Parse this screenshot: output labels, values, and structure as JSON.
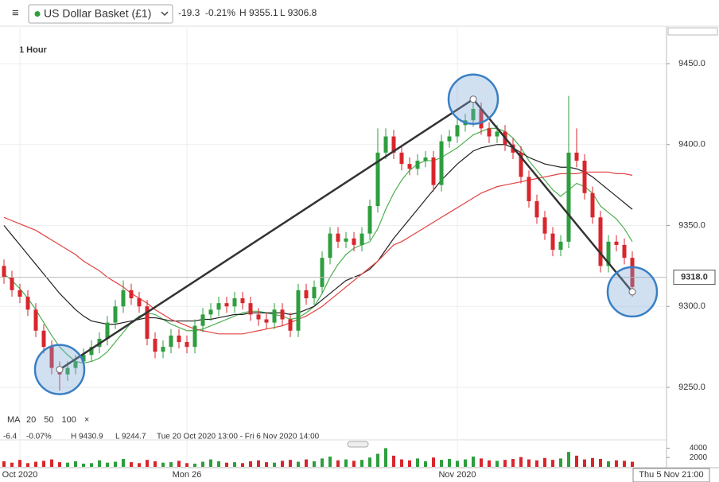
{
  "header": {
    "menu_icon": "≡",
    "instrument": "US Dollar Basket (£1)",
    "change": "-19.3",
    "change_pct": "-0.21%",
    "high": "H 9355.1",
    "low": "L 9306.8"
  },
  "chart_data": {
    "type": "candlestick",
    "interval": "1 Hour",
    "categories": [
      null,
      null,
      "Oct 2020",
      null,
      null,
      null,
      null,
      null,
      null,
      null,
      null,
      null,
      null,
      null,
      null,
      null,
      null,
      null,
      null,
      null,
      null,
      null,
      null,
      "Mon 26",
      null,
      null,
      null,
      null,
      null,
      null,
      null,
      null,
      null,
      null,
      null,
      null,
      null,
      null,
      null,
      null,
      null,
      null,
      null,
      null,
      null,
      null,
      null,
      null,
      null,
      null,
      null,
      null,
      null,
      null,
      null,
      null,
      null,
      "Nov 2020",
      null,
      null,
      null,
      null,
      null,
      null,
      null,
      null,
      null,
      null,
      null,
      null,
      null,
      null,
      null,
      null,
      null,
      null,
      null,
      null,
      null,
      null
    ],
    "crosshair_time": "Thu 5 Nov 21:00",
    "up_color": "#2e9e3e",
    "down_color": "#d8262c",
    "open": [
      9325,
      9318,
      9310,
      9306,
      9298,
      9285,
      9275,
      9262,
      9258,
      9262,
      9266,
      9270,
      9275,
      9280,
      9290,
      9300,
      9310,
      9305,
      9300,
      9280,
      9272,
      9275,
      9282,
      9278,
      9275,
      9288,
      9295,
      9298,
      9302,
      9300,
      9305,
      9302,
      9295,
      9292,
      9290,
      9298,
      9292,
      9285,
      9310,
      9305,
      9312,
      9330,
      9345,
      9340,
      9342,
      9338,
      9345,
      9362,
      9395,
      9405,
      9395,
      9388,
      9385,
      9390,
      9392,
      9375,
      9402,
      9405,
      9412,
      9415,
      9422,
      9410,
      9405,
      9408,
      9400,
      9395,
      9380,
      9365,
      9355,
      9345,
      9335,
      9340,
      9395,
      9390,
      9370,
      9355,
      9325,
      9340,
      9338,
      9330
    ],
    "high": [
      9329,
      9322,
      9314,
      9310,
      9302,
      9289,
      9279,
      9266,
      9266,
      9270,
      9274,
      9279,
      9284,
      9294,
      9304,
      9316,
      9314,
      9309,
      9304,
      9284,
      9279,
      9286,
      9286,
      9282,
      9292,
      9299,
      9302,
      9306,
      9306,
      9309,
      9309,
      9306,
      9299,
      9296,
      9302,
      9302,
      9296,
      9314,
      9314,
      9316,
      9334,
      9349,
      9349,
      9346,
      9346,
      9349,
      9366,
      9410,
      9410,
      9409,
      9399,
      9392,
      9394,
      9396,
      9396,
      9406,
      9409,
      9416,
      9419,
      9428,
      9426,
      9414,
      9412,
      9412,
      9404,
      9399,
      9384,
      9369,
      9359,
      9349,
      9344,
      9430,
      9410,
      9394,
      9374,
      9359,
      9344,
      9344,
      9342,
      9334
    ],
    "low": [
      9314,
      9306,
      9302,
      9294,
      9281,
      9271,
      9258,
      9248,
      9254,
      9258,
      9262,
      9266,
      9271,
      9276,
      9286,
      9296,
      9301,
      9296,
      9276,
      9268,
      9268,
      9271,
      9274,
      9271,
      9271,
      9284,
      9291,
      9294,
      9296,
      9296,
      9298,
      9291,
      9288,
      9286,
      9286,
      9288,
      9281,
      9281,
      9301,
      9301,
      9308,
      9326,
      9336,
      9336,
      9334,
      9334,
      9341,
      9358,
      9391,
      9391,
      9384,
      9381,
      9381,
      9386,
      9371,
      9371,
      9398,
      9401,
      9408,
      9411,
      9406,
      9401,
      9401,
      9396,
      9391,
      9376,
      9361,
      9351,
      9341,
      9331,
      9331,
      9336,
      9386,
      9366,
      9351,
      9321,
      9321,
      9334,
      9326,
      9306
    ],
    "close": [
      9318,
      9310,
      9306,
      9298,
      9285,
      9275,
      9262,
      9258,
      9262,
      9266,
      9270,
      9275,
      9280,
      9290,
      9300,
      9310,
      9305,
      9300,
      9280,
      9272,
      9275,
      9282,
      9278,
      9275,
      9288,
      9295,
      9298,
      9302,
      9300,
      9305,
      9302,
      9295,
      9292,
      9290,
      9298,
      9292,
      9285,
      9310,
      9305,
      9312,
      9330,
      9345,
      9340,
      9342,
      9338,
      9345,
      9362,
      9395,
      9405,
      9395,
      9388,
      9385,
      9390,
      9392,
      9375,
      9402,
      9405,
      9412,
      9415,
      9422,
      9410,
      9405,
      9408,
      9400,
      9395,
      9380,
      9365,
      9355,
      9345,
      9335,
      9340,
      9395,
      9390,
      9370,
      9355,
      9325,
      9340,
      9338,
      9330,
      9312
    ],
    "ma_label": "MA",
    "ma_close": "×",
    "ma_series": [
      {
        "name": "20",
        "color": "#4caf50",
        "values": [
          9320,
          9316,
          9311,
          9305,
          9298,
          9290,
          9282,
          9275,
          9270,
          9266,
          9265,
          9266,
          9268,
          9272,
          9278,
          9284,
          9290,
          9294,
          9296,
          9295,
          9292,
          9289,
          9287,
          9285,
          9285,
          9286,
          9288,
          9290,
          9292,
          9294,
          9296,
          9297,
          9297,
          9296,
          9295,
          9294,
          9292,
          9293,
          9296,
          9300,
          9308,
          9318,
          9326,
          9332,
          9336,
          9338,
          9340,
          9348,
          9360,
          9370,
          9378,
          9384,
          9388,
          9390,
          9390,
          9392,
          9395,
          9398,
          9402,
          9406,
          9408,
          9410,
          9410,
          9408,
          9404,
          9398,
          9390,
          9384,
          9378,
          9372,
          9368,
          9372,
          9376,
          9374,
          9370,
          9362,
          9358,
          9354,
          9348,
          9340
        ]
      },
      {
        "name": "50",
        "color": "#222222",
        "values": [
          9350,
          9344,
          9338,
          9332,
          9326,
          9320,
          9314,
          9308,
          9303,
          9298,
          9294,
          9291,
          9290,
          9289,
          9289,
          9290,
          9291,
          9292,
          9293,
          9293,
          9292,
          9291,
          9291,
          9291,
          9291,
          9292,
          9292,
          9293,
          9294,
          9295,
          9295,
          9296,
          9296,
          9296,
          9296,
          9296,
          9295,
          9296,
          9298,
          9300,
          9304,
          9308,
          9312,
          9316,
          9318,
          9320,
          9323,
          9328,
          9335,
          9342,
          9348,
          9354,
          9360,
          9366,
          9372,
          9378,
          9383,
          9388,
          9392,
          9396,
          9398,
          9399,
          9400,
          9400,
          9398,
          9395,
          9392,
          9390,
          9388,
          9387,
          9386,
          9386,
          9385,
          9383,
          9380,
          9376,
          9372,
          9368,
          9364,
          9360
        ]
      },
      {
        "name": "100",
        "color": "#e0433f",
        "values": [
          9355,
          9353,
          9351,
          9349,
          9347,
          9344,
          9341,
          9338,
          9335,
          9332,
          9328,
          9325,
          9322,
          9318,
          9315,
          9312,
          9308,
          9305,
          9302,
          9298,
          9295,
          9292,
          9290,
          9288,
          9286,
          9285,
          9284,
          9283,
          9283,
          9283,
          9283,
          9284,
          9285,
          9286,
          9287,
          9288,
          9290,
          9292,
          9294,
          9297,
          9300,
          9304,
          9308,
          9312,
          9316,
          9320,
          9324,
          9328,
          9333,
          9338,
          9340,
          9343,
          9346,
          9349,
          9352,
          9355,
          9358,
          9361,
          9364,
          9367,
          9370,
          9372,
          9374,
          9375,
          9376,
          9377,
          9378,
          9379,
          9380,
          9381,
          9382,
          9382,
          9382,
          9383,
          9383,
          9383,
          9383,
          9382,
          9382,
          9381
        ]
      }
    ],
    "trendline": [
      {
        "index": 7,
        "price": 9261
      },
      {
        "index": 59,
        "price": 9428
      },
      {
        "index": 79,
        "price": 9309
      }
    ],
    "ylim": [
      9226.4,
      9472.1
    ],
    "yticks": [
      {
        "value": 9250,
        "label": "9250.0"
      },
      {
        "value": 9300,
        "label": "9300.0"
      },
      {
        "value": 9350,
        "label": "9350.0"
      },
      {
        "value": 9400,
        "label": "9400.0"
      },
      {
        "value": 9450,
        "label": "9450.0"
      }
    ],
    "last_price": {
      "value": 9318,
      "label": "9318.0"
    },
    "info": {
      "change": "-6.4",
      "change_pct": "-0.07%",
      "high": "H 9430.9",
      "low": "L 9244.7",
      "range": "Tue 20 Oct 2020 13:00 - Fri 6 Nov 2020 14:00"
    },
    "volume": {
      "values": [
        1200,
        900,
        1500,
        800,
        1100,
        1300,
        1600,
        1000,
        900,
        1200,
        700,
        800,
        1400,
        900,
        1100,
        1700,
        1000,
        800,
        1500,
        1200,
        900,
        1000,
        1300,
        800,
        700,
        1100,
        1600,
        1200,
        900,
        1000,
        800,
        1200,
        1400,
        1000,
        900,
        1300,
        1500,
        1100,
        1600,
        1200,
        1800,
        2200,
        1400,
        1600,
        1300,
        1500,
        2000,
        2800,
        4000,
        2400,
        1600,
        1400,
        1800,
        1200,
        2000,
        1500,
        1700,
        1300,
        1600,
        2200,
        1800,
        1400,
        1300,
        1500,
        1700,
        2100,
        1600,
        1400,
        1900,
        1500,
        1800,
        3200,
        2400,
        1600,
        1900,
        1700,
        1200,
        1400,
        1300,
        1100
      ],
      "ylim": [
        0,
        5100
      ],
      "yticks": [
        2000,
        4000
      ]
    }
  }
}
